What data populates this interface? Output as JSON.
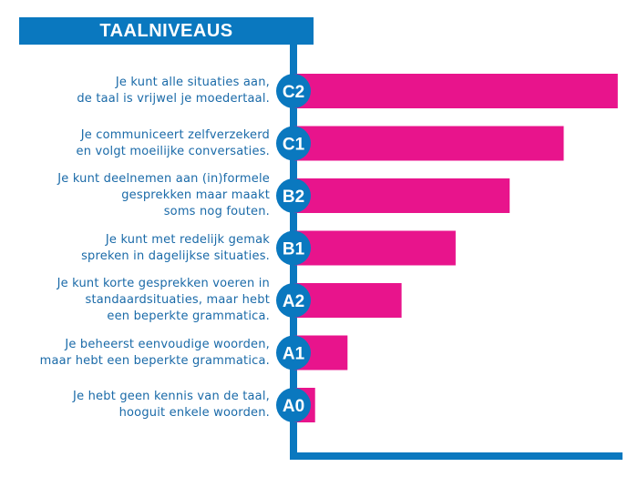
{
  "colors": {
    "accent": "#0a78bf",
    "bar": "#e8148c",
    "text": "#1a6aa8"
  },
  "chart_data": {
    "type": "bar",
    "orientation": "horizontal",
    "title": "TAALNIVEAUS",
    "categories": [
      "C2",
      "C1",
      "B2",
      "B1",
      "A2",
      "A1",
      "A0"
    ],
    "values": [
      6,
      5,
      4,
      3,
      2,
      1,
      0.4
    ],
    "descriptions": [
      [
        "Je kunt alle situaties aan,",
        "de taal is vrijwel je moedertaal."
      ],
      [
        "Je communiceert zelfverzekerd",
        "en volgt moeilijke conversaties."
      ],
      [
        "Je kunt deelnemen aan (in)formele",
        "gesprekken maar maakt",
        "soms nog fouten."
      ],
      [
        "Je kunt met redelijk gemak",
        "spreken in dagelijkse situaties."
      ],
      [
        "Je kunt korte gesprekken voeren in",
        "standaardsituaties, maar hebt",
        "een beperkte grammatica."
      ],
      [
        "Je beheerst eenvoudige woorden,",
        "maar hebt een beperkte grammatica."
      ],
      [
        "Je hebt geen kennis van de taal,",
        "hooguit enkele woorden."
      ]
    ]
  }
}
